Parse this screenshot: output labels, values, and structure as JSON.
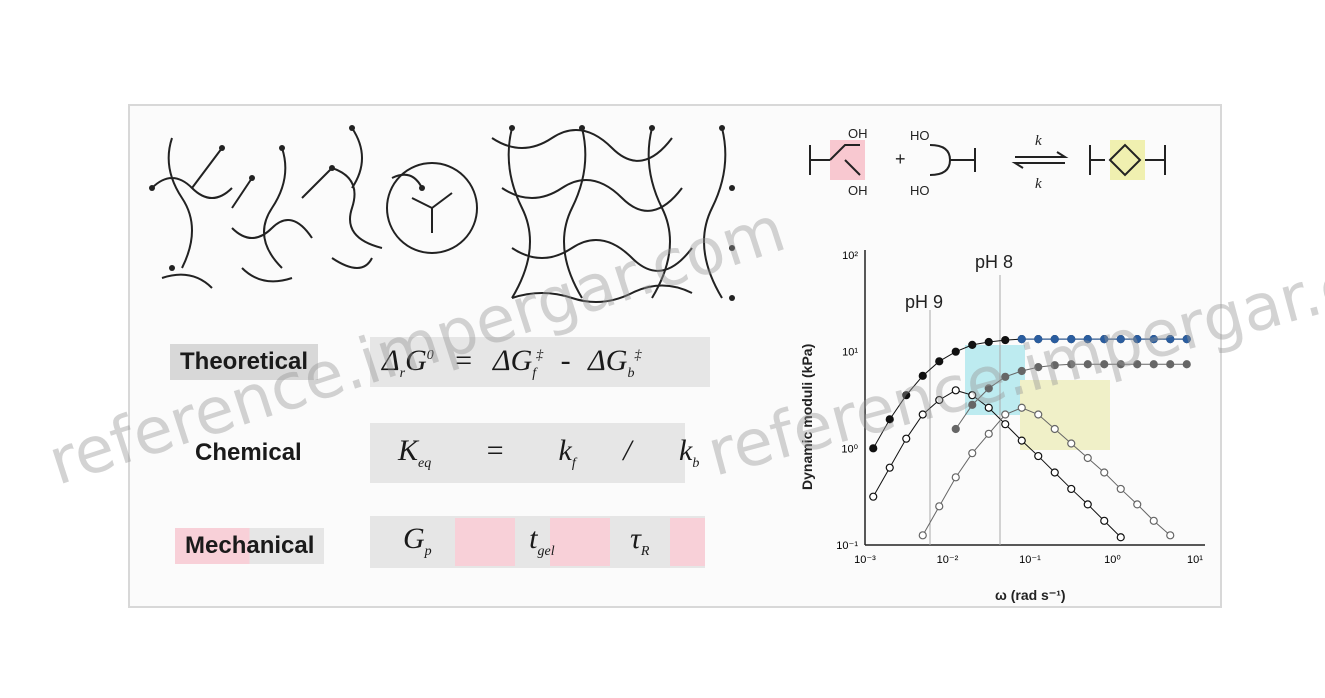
{
  "rows": [
    {
      "label": "Theoretical",
      "eq_parts": [
        "Δ",
        "G",
        "0",
        "=",
        "ΔG",
        "‡",
        "-",
        "ΔG",
        "‡"
      ]
    },
    {
      "label": "Chemical",
      "eq_parts": [
        "K",
        "eq",
        "=",
        "k",
        "f",
        "/",
        "k",
        "b"
      ]
    },
    {
      "label": "Mechanical",
      "eq_parts": [
        "G",
        "p",
        "t",
        "gel",
        "τ",
        "R"
      ]
    }
  ],
  "scheme": {
    "ho_top": "HO",
    "ho_bottom": "HO",
    "oh_top": "OH",
    "oh_bottom": "OH",
    "plus": "+",
    "kf": "k",
    "kb": "k"
  },
  "chart": {
    "ylabel": "Dynamic moduli (kPa)",
    "xlabel": "ω (rad s⁻¹)",
    "ph9": "pH 9",
    "ph8": "pH 8",
    "y_ticks": [
      "10²",
      "10¹",
      "10⁰",
      "10⁻¹"
    ],
    "x_ticks": [
      "10⁻³",
      "10⁻²",
      "10⁻¹",
      "10⁰",
      "10¹"
    ]
  },
  "chart_data": {
    "type": "scatter",
    "xlabel": "ω (rad s⁻¹)",
    "ylabel": "Dynamic moduli (kPa)",
    "x_scale": "log",
    "y_scale": "log",
    "x_ticks": [
      "10⁻³",
      "10⁻²",
      "10⁻¹",
      "10⁰",
      "10¹"
    ],
    "y_ticks": [
      "10²",
      "10¹",
      "10⁰",
      "10⁻¹"
    ],
    "annotations": [
      "pH 9",
      "pH 8"
    ],
    "series": [
      {
        "style": "filled-black",
        "x": [
          -2.9,
          -2.7,
          -2.5,
          -2.3,
          -2.1,
          -1.9,
          -1.7,
          -1.5,
          -1.3,
          -1.1,
          -0.9,
          -0.7,
          -0.5,
          -0.3,
          -0.1,
          0.1,
          0.3,
          0.5,
          0.7,
          0.9
        ],
        "y": [
          0.0,
          0.3,
          0.55,
          0.75,
          0.9,
          1.0,
          1.07,
          1.1,
          1.12,
          1.13,
          1.13,
          1.13,
          1.13,
          1.13,
          1.13,
          1.13,
          1.13,
          1.13,
          1.13,
          1.13
        ]
      },
      {
        "style": "open-black",
        "x": [
          -2.9,
          -2.7,
          -2.5,
          -2.3,
          -2.1,
          -1.9,
          -1.7,
          -1.5,
          -1.3,
          -1.1,
          -0.9,
          -0.7,
          -0.5,
          -0.3,
          -0.1,
          0.1
        ],
        "y": [
          -0.5,
          -0.2,
          0.1,
          0.35,
          0.5,
          0.6,
          0.55,
          0.42,
          0.25,
          0.08,
          -0.08,
          -0.25,
          -0.42,
          -0.58,
          -0.75,
          -0.92
        ]
      },
      {
        "style": "filled-blue",
        "x": [
          -1.1,
          -0.9,
          -0.7,
          -0.5,
          -0.3,
          -0.1,
          0.1,
          0.3,
          0.5,
          0.7,
          0.9
        ],
        "y": [
          1.13,
          1.13,
          1.13,
          1.13,
          1.13,
          1.13,
          1.13,
          1.13,
          1.13,
          1.13,
          1.13
        ]
      },
      {
        "style": "open-gray",
        "x": [
          -2.3,
          -2.1,
          -1.9,
          -1.7,
          -1.5,
          -1.3,
          -1.1,
          -0.9,
          -0.7,
          -0.5,
          -0.3,
          -0.1,
          0.1,
          0.3,
          0.5,
          0.7
        ],
        "y": [
          -0.9,
          -0.6,
          -0.3,
          -0.05,
          0.15,
          0.35,
          0.42,
          0.35,
          0.2,
          0.05,
          -0.1,
          -0.25,
          -0.42,
          -0.58,
          -0.75,
          -0.9
        ]
      },
      {
        "style": "filled-gray",
        "x": [
          -1.9,
          -1.7,
          -1.5,
          -1.3,
          -1.1,
          -0.9,
          -0.7,
          -0.5,
          -0.3,
          -0.1,
          0.1,
          0.3,
          0.5,
          0.7,
          0.9
        ],
        "y": [
          0.2,
          0.45,
          0.62,
          0.74,
          0.8,
          0.84,
          0.86,
          0.87,
          0.87,
          0.87,
          0.87,
          0.87,
          0.87,
          0.87,
          0.87
        ]
      }
    ]
  },
  "watermarks": [
    "reference.impergar.com",
    "reference.impergar.com"
  ]
}
